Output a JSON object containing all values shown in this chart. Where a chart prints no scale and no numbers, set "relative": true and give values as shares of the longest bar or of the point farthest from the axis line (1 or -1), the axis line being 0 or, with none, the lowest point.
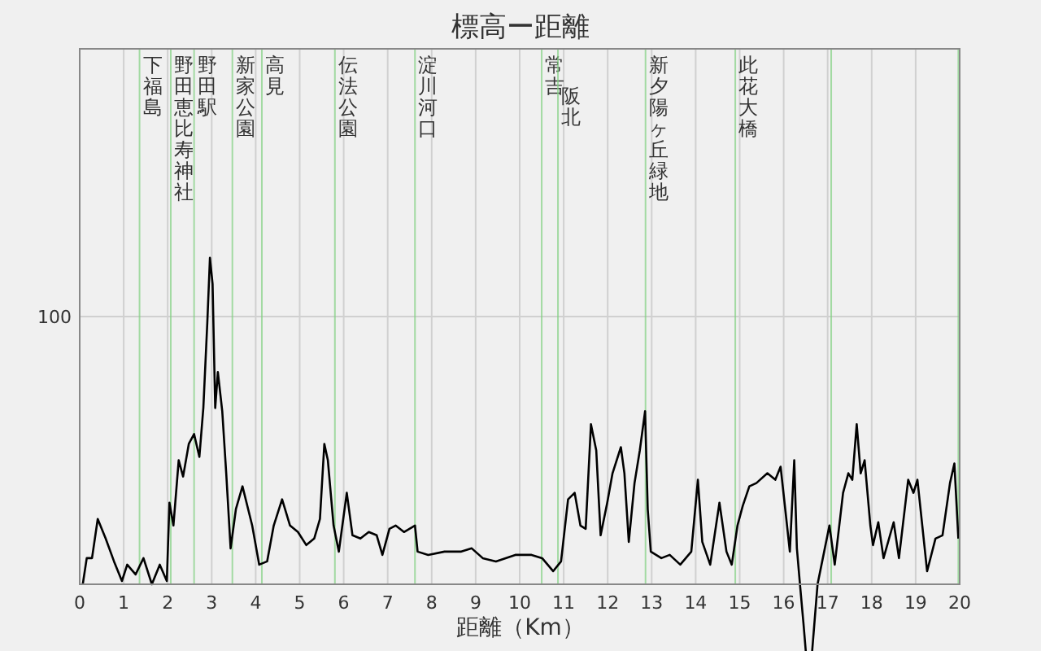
{
  "chart_data": {
    "type": "line",
    "title": "標高ー距離",
    "xlabel": "距離（Km）",
    "relative": true,
    "xlim": [
      0,
      20
    ],
    "xticks": [
      0,
      1,
      2,
      3,
      4,
      5,
      6,
      7,
      8,
      9,
      10,
      11,
      12,
      13,
      14,
      15,
      16,
      17,
      18,
      19,
      20
    ],
    "grid": "x",
    "annotations": [
      "100"
    ],
    "series": [
      {
        "color": "#000000",
        "x": [
          0.07,
          0.16,
          0.28,
          0.41,
          0.59,
          0.78,
          0.96,
          1.08,
          1.27,
          1.45,
          1.64,
          1.82,
          1.98,
          2.04,
          2.13,
          2.25,
          2.35,
          2.48,
          2.6,
          2.72,
          2.81,
          2.9,
          2.96,
          3.02,
          3.08,
          3.14,
          3.24,
          3.33,
          3.43,
          3.55,
          3.7,
          3.92,
          4.08,
          4.26,
          4.41,
          4.6,
          4.78,
          4.96,
          5.15,
          5.33,
          5.46,
          5.56,
          5.64,
          5.77,
          5.89,
          6.07,
          6.2,
          6.38,
          6.57,
          6.75,
          6.88,
          7.04,
          7.18,
          7.37,
          7.62,
          7.68,
          7.92,
          8.29,
          8.66,
          8.91,
          9.16,
          9.46,
          9.9,
          10.27,
          10.51,
          10.76,
          10.94,
          11.1,
          11.25,
          11.38,
          11.5,
          11.62,
          11.74,
          11.84,
          11.99,
          12.11,
          12.3,
          12.38,
          12.48,
          12.61,
          12.73,
          12.85,
          12.91,
          12.98,
          13.22,
          13.41,
          13.65,
          13.9,
          14.05,
          14.15,
          14.33,
          14.54,
          14.7,
          14.82,
          14.95,
          15.07,
          15.22,
          15.38,
          15.63,
          15.81,
          15.93,
          16.06,
          16.14,
          16.24,
          16.3,
          16.37,
          16.45,
          16.53,
          16.62,
          16.77,
          16.92,
          17.04,
          17.16,
          17.35,
          17.47,
          17.56,
          17.66,
          17.75,
          17.84,
          17.97,
          18.03,
          18.15,
          18.27,
          18.5,
          18.62,
          18.83,
          18.95,
          19.04,
          19.26,
          19.45,
          19.61,
          19.78,
          19.88,
          19.97
        ],
        "values": [
          0,
          0.08,
          0.08,
          0.2,
          0.14,
          0.07,
          0.01,
          0.06,
          0.03,
          0.08,
          0,
          0.06,
          0.01,
          0.25,
          0.18,
          0.38,
          0.33,
          0.43,
          0.46,
          0.39,
          0.54,
          0.8,
          1,
          0.92,
          0.54,
          0.65,
          0.53,
          0.34,
          0.11,
          0.23,
          0.3,
          0.18,
          0.06,
          0.07,
          0.18,
          0.26,
          0.18,
          0.16,
          0.12,
          0.14,
          0.2,
          0.43,
          0.38,
          0.18,
          0.1,
          0.28,
          0.15,
          0.14,
          0.16,
          0.15,
          0.09,
          0.17,
          0.18,
          0.16,
          0.18,
          0.1,
          0.09,
          0.1,
          0.1,
          0.11,
          0.08,
          0.07,
          0.09,
          0.09,
          0.08,
          0.04,
          0.07,
          0.26,
          0.28,
          0.18,
          0.17,
          0.49,
          0.41,
          0.15,
          0.25,
          0.34,
          0.42,
          0.34,
          0.13,
          0.31,
          0.41,
          0.53,
          0.23,
          0.1,
          0.08,
          0.09,
          0.06,
          0.1,
          0.32,
          0.13,
          0.06,
          0.25,
          0.1,
          0.06,
          0.18,
          0.24,
          0.3,
          0.31,
          0.34,
          0.32,
          0.36,
          0.2,
          0.1,
          0.38,
          0.11,
          0,
          -0.12,
          -0.25,
          -0.25,
          0,
          0.1,
          0.18,
          0.06,
          0.28,
          0.34,
          0.32,
          0.49,
          0.34,
          0.38,
          0.18,
          0.12,
          0.19,
          0.08,
          0.19,
          0.08,
          0.32,
          0.28,
          0.32,
          0.04,
          0.14,
          0.15,
          0.31,
          0.37,
          0.14
        ]
      }
    ],
    "ref_lines": [
      {
        "axis": "y",
        "value": 0.82,
        "label": null,
        "color": "#d0d0d0"
      },
      {
        "axis": "x",
        "value": 1.36,
        "label": "下福島",
        "color": "#80d080"
      },
      {
        "axis": "x",
        "value": 2.07,
        "label": "野田恵比寿神社",
        "color": "#80d080"
      },
      {
        "axis": "x",
        "value": 2.6,
        "label": "野田駅",
        "color": "#80d080"
      },
      {
        "axis": "x",
        "value": 3.47,
        "label": "新家公園",
        "color": "#80d080"
      },
      {
        "axis": "x",
        "value": 4.14,
        "label": "高見",
        "color": "#80d080"
      },
      {
        "axis": "x",
        "value": 5.8,
        "label": "伝法公園",
        "color": "#80d080"
      },
      {
        "axis": "x",
        "value": 7.62,
        "label": "淀川河口",
        "color": "#80d080"
      },
      {
        "axis": "x",
        "value": 10.5,
        "label": "常吉",
        "color": "#80d080"
      },
      {
        "axis": "x",
        "value": 10.87,
        "label": "阪北",
        "color": "#80d080"
      },
      {
        "axis": "x",
        "value": 12.86,
        "label": "新夕陽ヶ丘緑地",
        "color": "#80d080"
      },
      {
        "axis": "x",
        "value": 14.9,
        "label": "此花大橋",
        "color": "#80d080"
      },
      {
        "axis": "x",
        "value": 17.08,
        "label": null,
        "color": "#80d080"
      },
      {
        "axis": "x",
        "value": 19.97,
        "label": null,
        "color": "#80d080"
      }
    ]
  }
}
